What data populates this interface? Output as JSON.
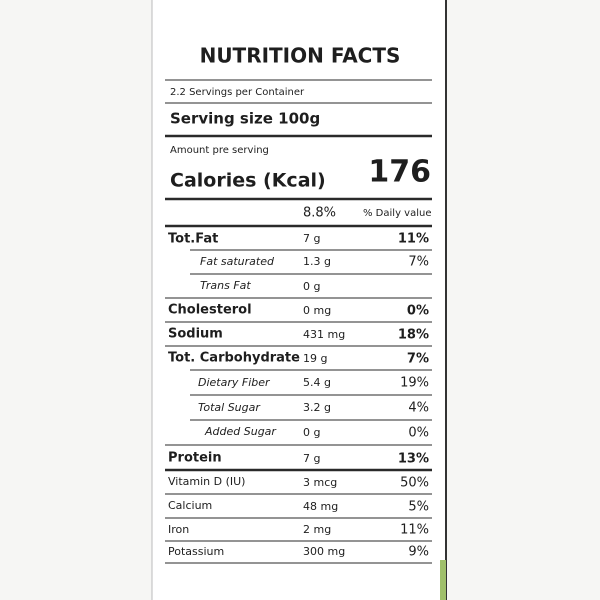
{
  "label": {
    "title": "NUTRITION FACTS",
    "servings": "2.2  Servings per Container",
    "serving_size": "Serving size 100g",
    "amount_per_serving": "Amount pre serving",
    "calories_label": "Calories (Kcal)",
    "calories_value": "176",
    "percent": "8.8%",
    "daily_value_header": "% Daily value",
    "rows": [
      [
        "Tot.Fat",
        "7 g",
        "11%"
      ],
      [
        "Fat saturated",
        "1.3 g",
        "7%"
      ],
      [
        "Trans Fat",
        "0 g",
        ""
      ],
      [
        "Cholesterol",
        "0 mg",
        "0%"
      ],
      [
        "Sodium",
        "431 mg",
        "18%"
      ],
      [
        "Tot. Carbohydrate",
        "19 g",
        "7%"
      ],
      [
        "Dietary Fiber",
        "5.4 g",
        "19%"
      ],
      [
        "Total Sugar",
        "3.2 g",
        "4%"
      ],
      [
        "Added Sugar",
        "0 g",
        "0%"
      ],
      [
        "Protein",
        "7 g",
        "13%"
      ],
      [
        "Vitamin D (IU)",
        "3 mcg",
        "50%"
      ],
      [
        "Calcium",
        "48 mg",
        "5%"
      ],
      [
        "Iron",
        "2 mg",
        "11%"
      ],
      [
        "Potassium",
        "300 mg",
        "9%"
      ]
    ]
  }
}
